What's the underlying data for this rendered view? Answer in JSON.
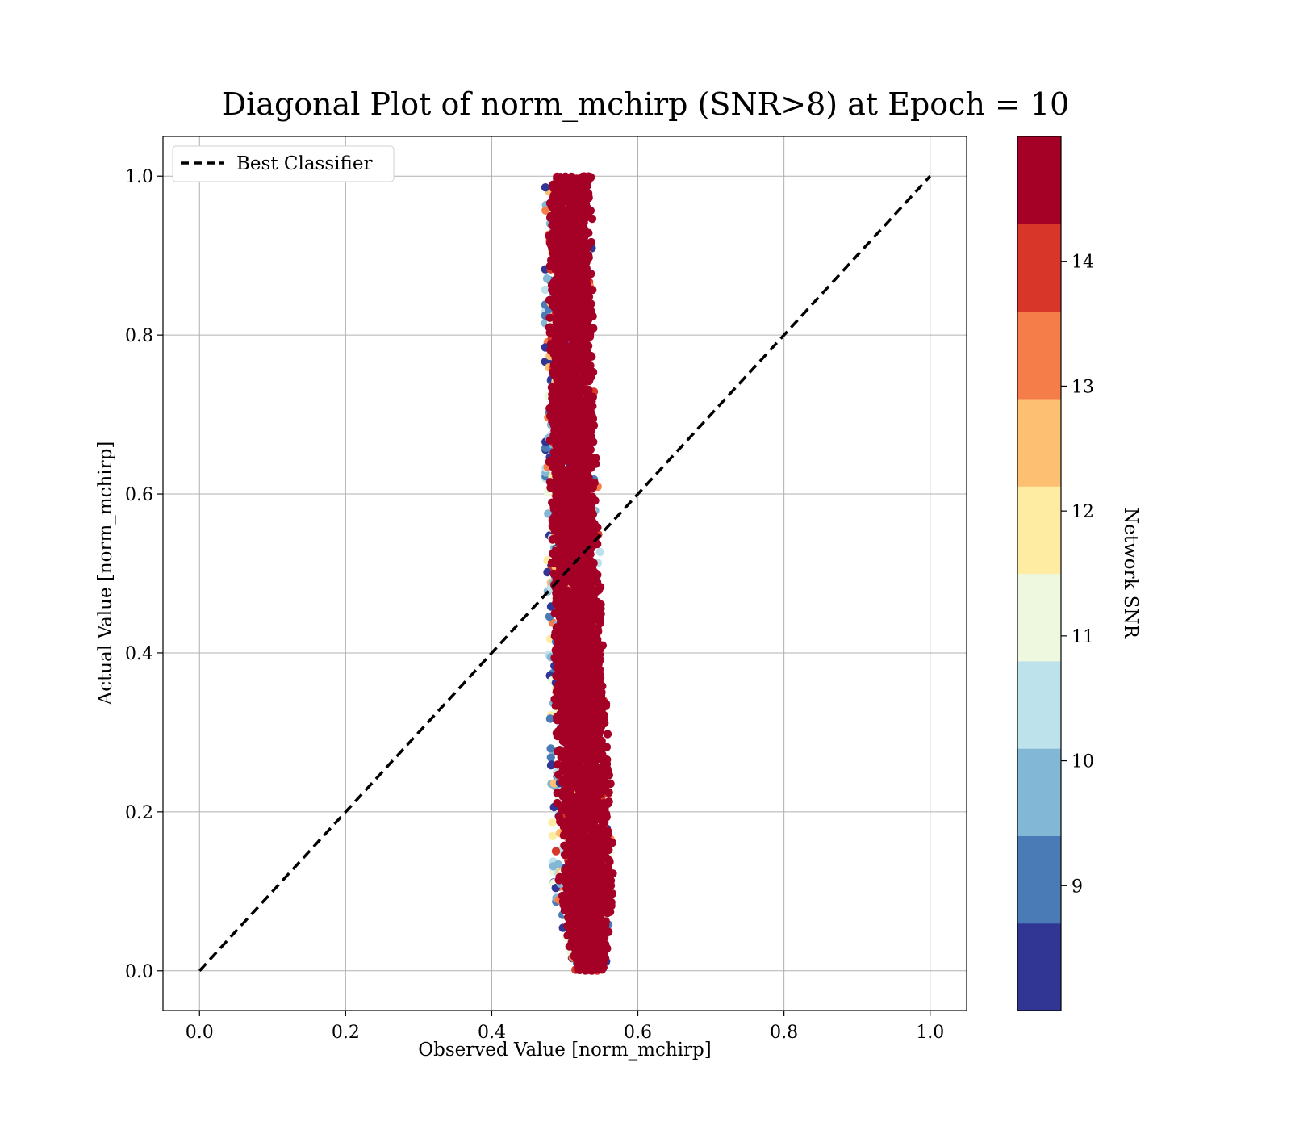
{
  "chart_data": {
    "type": "scatter",
    "title": "Diagonal Plot of norm_mchirp (SNR>8) at Epoch = 10",
    "xlabel": "Observed Value [norm_mchirp]",
    "ylabel": "Actual Value [norm_mchirp]",
    "xlim": [
      -0.05,
      1.05
    ],
    "ylim": [
      -0.05,
      1.05
    ],
    "xticks": [
      "0.0",
      "0.2",
      "0.4",
      "0.6",
      "0.8",
      "1.0"
    ],
    "yticks": [
      "0.0",
      "0.2",
      "0.4",
      "0.6",
      "0.8",
      "1.0"
    ],
    "grid": true,
    "legend": {
      "placement": "upper-left",
      "entries": [
        {
          "label": "Best Classifier",
          "style": "dashed",
          "color": "#000000"
        }
      ]
    },
    "reference_line": {
      "name": "Best Classifier",
      "x": [
        0.0,
        1.0
      ],
      "y": [
        0.0,
        1.0
      ]
    },
    "point_cloud": {
      "description_free": true,
      "center_line": [
        {
          "y": 0.0,
          "x": 0.535
        },
        {
          "y": 0.2,
          "x": 0.527
        },
        {
          "y": 0.4,
          "x": 0.52
        },
        {
          "y": 0.6,
          "x": 0.513
        },
        {
          "y": 0.8,
          "x": 0.51
        },
        {
          "y": 1.0,
          "x": 0.508
        }
      ],
      "half_width": [
        {
          "y": 0.0,
          "x": 0.022
        },
        {
          "y": 0.1,
          "x": 0.04
        },
        {
          "y": 0.5,
          "x": 0.035
        },
        {
          "y": 1.0,
          "x": 0.03
        }
      ],
      "y_range": [
        0.0,
        1.0
      ],
      "color_value_range": [
        8.0,
        15.0
      ]
    },
    "colorbar": {
      "label": "Network SNR",
      "range": [
        8.0,
        15.0
      ],
      "bins": [
        {
          "from": 8.0,
          "to": 8.7,
          "color": "#313695"
        },
        {
          "from": 8.7,
          "to": 9.4,
          "color": "#4a7bb7"
        },
        {
          "from": 9.4,
          "to": 10.1,
          "color": "#82b7d6"
        },
        {
          "from": 10.1,
          "to": 10.8,
          "color": "#bde2ec"
        },
        {
          "from": 10.8,
          "to": 11.5,
          "color": "#edf8df"
        },
        {
          "from": 11.5,
          "to": 12.2,
          "color": "#feeca2"
        },
        {
          "from": 12.2,
          "to": 12.9,
          "color": "#fdbf71"
        },
        {
          "from": 12.9,
          "to": 13.6,
          "color": "#f57d4a"
        },
        {
          "from": 13.6,
          "to": 14.3,
          "color": "#d83628"
        },
        {
          "from": 14.3,
          "to": 15.0,
          "color": "#a50026"
        }
      ],
      "ticks": [
        9,
        10,
        11,
        12,
        13,
        14
      ],
      "tick_labels": [
        "9",
        "10",
        "11",
        "12",
        "13",
        "14"
      ]
    }
  }
}
